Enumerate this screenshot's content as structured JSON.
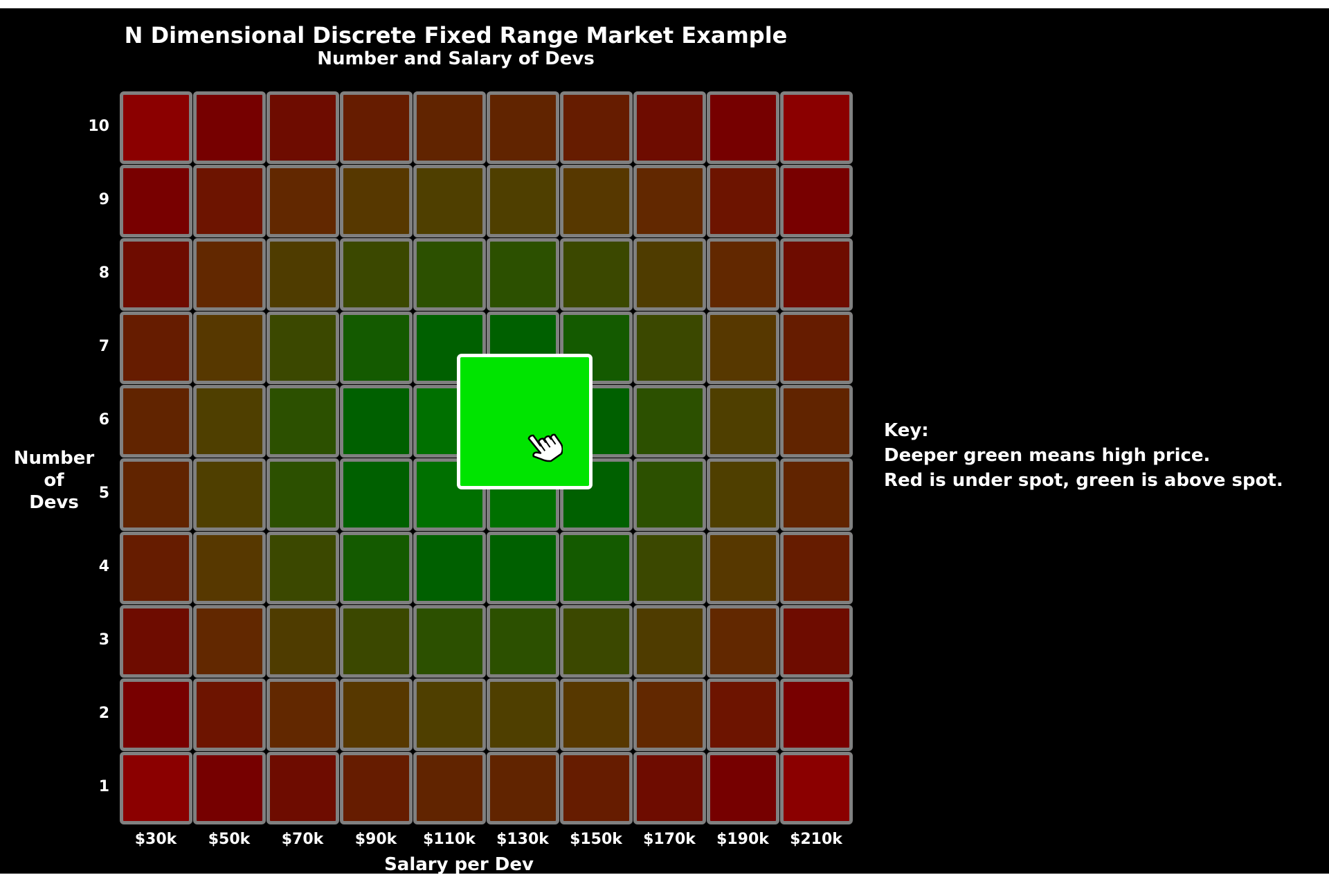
{
  "chart_data": {
    "type": "heatmap",
    "title": "N Dimensional Discrete Fixed Range Market Example",
    "subtitle": "Number and Salary of Devs",
    "xlabel": "Salary per Dev",
    "ylabel": "Number\nof\nDevs",
    "x_categories": [
      "$30k",
      "$50k",
      "$70k",
      "$90k",
      "$110k",
      "$130k",
      "$150k",
      "$170k",
      "$190k",
      "$210k"
    ],
    "y_categories": [
      "1",
      "2",
      "3",
      "4",
      "5",
      "6",
      "7",
      "8",
      "9",
      "10"
    ],
    "colors_by_row": [
      [
        "#8b0000",
        "#760000",
        "#6e0c00",
        "#661c00",
        "#612400",
        "#612400",
        "#661c00",
        "#6e0c00",
        "#760000",
        "#8b0000"
      ],
      [
        "#780000",
        "#6d1400",
        "#622800",
        "#573800",
        "#4f3f00",
        "#4f3f00",
        "#573800",
        "#622800",
        "#6d1400",
        "#780000"
      ],
      [
        "#6e0c00",
        "#622800",
        "#4f3c00",
        "#3b4800",
        "#2c5000",
        "#2c5000",
        "#3b4800",
        "#4f3c00",
        "#622800",
        "#6e0c00"
      ],
      [
        "#661c00",
        "#573800",
        "#3b4800",
        "#145a00",
        "#006000",
        "#006000",
        "#145a00",
        "#3b4800",
        "#573800",
        "#661c00"
      ],
      [
        "#612400",
        "#4f3f00",
        "#2c5000",
        "#006000",
        "#007000",
        "#007000",
        "#006000",
        "#2c5000",
        "#4f3f00",
        "#612400"
      ],
      [
        "#612400",
        "#4f3f00",
        "#2c5000",
        "#006000",
        "#007000",
        "#007000",
        "#006000",
        "#2c5000",
        "#4f3f00",
        "#612400"
      ],
      [
        "#661c00",
        "#573800",
        "#3b4800",
        "#145a00",
        "#006000",
        "#006000",
        "#145a00",
        "#3b4800",
        "#573800",
        "#661c00"
      ],
      [
        "#6e0c00",
        "#622800",
        "#4f3c00",
        "#3b4800",
        "#2c5000",
        "#2c5000",
        "#3b4800",
        "#4f3c00",
        "#622800",
        "#6e0c00"
      ],
      [
        "#780000",
        "#6d1400",
        "#622800",
        "#573800",
        "#4f3f00",
        "#4f3f00",
        "#573800",
        "#622800",
        "#6d1400",
        "#780000"
      ],
      [
        "#8b0000",
        "#760000",
        "#6e0c00",
        "#661c00",
        "#612400",
        "#612400",
        "#661c00",
        "#6e0c00",
        "#760000",
        "#8b0000"
      ]
    ],
    "selected": {
      "x": [
        "$110k",
        "$130k"
      ],
      "y": [
        "5",
        "6"
      ],
      "color": "#00e400"
    },
    "grid_line_color": "#808080",
    "background": "#000000"
  },
  "key": {
    "heading": "Key:",
    "line1": "Deeper green means high price.",
    "line2": "Red is under spot, green is above spot."
  },
  "icons": {
    "cursor": "hand-pointer-icon"
  }
}
